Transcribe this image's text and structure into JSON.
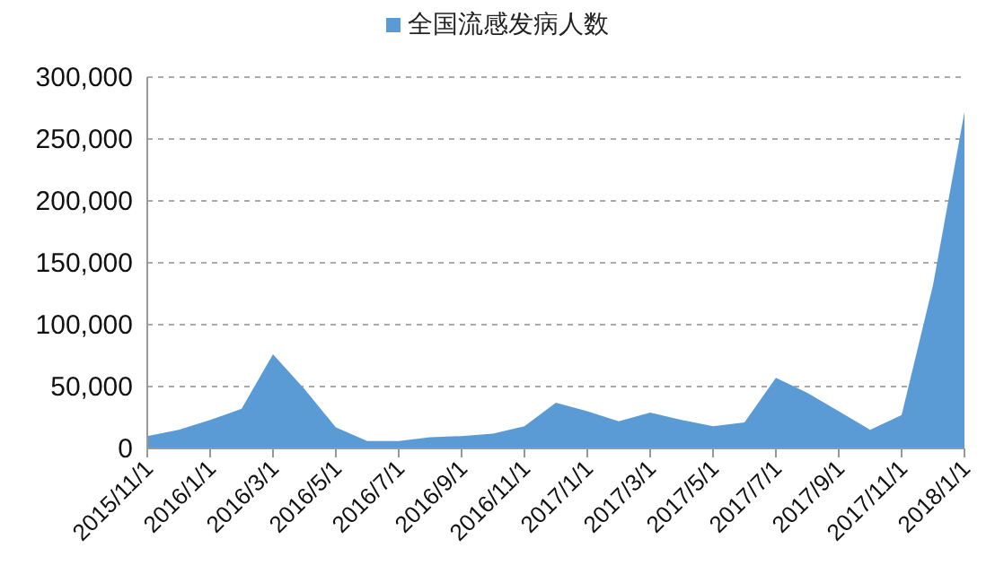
{
  "chart_data": {
    "type": "area",
    "categories": [
      "2015/11/1",
      null,
      "2016/1/1",
      null,
      "2016/3/1",
      null,
      "2016/5/1",
      null,
      "2016/7/1",
      null,
      "2016/9/1",
      null,
      "2016/11/1",
      null,
      "2017/1/1",
      null,
      "2017/3/1",
      null,
      "2017/5/1",
      null,
      "2017/7/1",
      null,
      "2017/9/1",
      null,
      "2017/11/1",
      null,
      "2018/1/1"
    ],
    "series": [
      {
        "name": "全国流感发病人数",
        "color": "#5b9bd5",
        "values": [
          10000,
          15000,
          23000,
          32000,
          76000,
          48000,
          17000,
          6000,
          6000,
          9000,
          10000,
          12000,
          18000,
          37000,
          30000,
          22000,
          29000,
          23000,
          18000,
          21000,
          57000,
          45000,
          30000,
          15000,
          27000,
          132000,
          272000
        ]
      }
    ],
    "ylim": [
      0,
      300000
    ],
    "yticks": [
      {
        "value": 0,
        "label": "0"
      },
      {
        "value": 50000,
        "label": "50,000"
      },
      {
        "value": 100000,
        "label": "100,000"
      },
      {
        "value": 150000,
        "label": "150,000"
      },
      {
        "value": 200000,
        "label": "200,000"
      },
      {
        "value": 250000,
        "label": "250,000"
      },
      {
        "value": 300000,
        "label": "300,000"
      }
    ],
    "grid": "y",
    "legend": "top"
  }
}
